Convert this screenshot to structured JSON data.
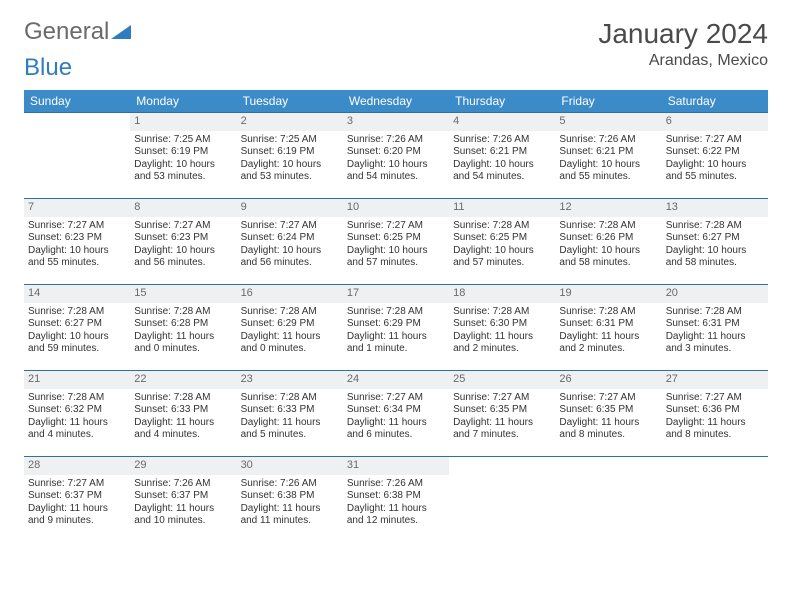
{
  "brand": {
    "general": "General",
    "blue": "Blue"
  },
  "title": "January 2024",
  "location": "Arandas, Mexico",
  "colors": {
    "header_bg": "#3b8bc9",
    "header_text": "#ffffff",
    "week_border": "#2f6fa8",
    "daynum_bg": "#eef0f2",
    "daynum_text": "#6a6a6a",
    "body_text": "#333333",
    "logo_gray": "#6a6a6a",
    "logo_blue": "#2f7dc0"
  },
  "day_headers": [
    "Sunday",
    "Monday",
    "Tuesday",
    "Wednesday",
    "Thursday",
    "Friday",
    "Saturday"
  ],
  "weeks": [
    [
      {
        "n": "",
        "l1": "",
        "l2": "",
        "l3": "",
        "l4": ""
      },
      {
        "n": "1",
        "l1": "Sunrise: 7:25 AM",
        "l2": "Sunset: 6:19 PM",
        "l3": "Daylight: 10 hours",
        "l4": "and 53 minutes."
      },
      {
        "n": "2",
        "l1": "Sunrise: 7:25 AM",
        "l2": "Sunset: 6:19 PM",
        "l3": "Daylight: 10 hours",
        "l4": "and 53 minutes."
      },
      {
        "n": "3",
        "l1": "Sunrise: 7:26 AM",
        "l2": "Sunset: 6:20 PM",
        "l3": "Daylight: 10 hours",
        "l4": "and 54 minutes."
      },
      {
        "n": "4",
        "l1": "Sunrise: 7:26 AM",
        "l2": "Sunset: 6:21 PM",
        "l3": "Daylight: 10 hours",
        "l4": "and 54 minutes."
      },
      {
        "n": "5",
        "l1": "Sunrise: 7:26 AM",
        "l2": "Sunset: 6:21 PM",
        "l3": "Daylight: 10 hours",
        "l4": "and 55 minutes."
      },
      {
        "n": "6",
        "l1": "Sunrise: 7:27 AM",
        "l2": "Sunset: 6:22 PM",
        "l3": "Daylight: 10 hours",
        "l4": "and 55 minutes."
      }
    ],
    [
      {
        "n": "7",
        "l1": "Sunrise: 7:27 AM",
        "l2": "Sunset: 6:23 PM",
        "l3": "Daylight: 10 hours",
        "l4": "and 55 minutes."
      },
      {
        "n": "8",
        "l1": "Sunrise: 7:27 AM",
        "l2": "Sunset: 6:23 PM",
        "l3": "Daylight: 10 hours",
        "l4": "and 56 minutes."
      },
      {
        "n": "9",
        "l1": "Sunrise: 7:27 AM",
        "l2": "Sunset: 6:24 PM",
        "l3": "Daylight: 10 hours",
        "l4": "and 56 minutes."
      },
      {
        "n": "10",
        "l1": "Sunrise: 7:27 AM",
        "l2": "Sunset: 6:25 PM",
        "l3": "Daylight: 10 hours",
        "l4": "and 57 minutes."
      },
      {
        "n": "11",
        "l1": "Sunrise: 7:28 AM",
        "l2": "Sunset: 6:25 PM",
        "l3": "Daylight: 10 hours",
        "l4": "and 57 minutes."
      },
      {
        "n": "12",
        "l1": "Sunrise: 7:28 AM",
        "l2": "Sunset: 6:26 PM",
        "l3": "Daylight: 10 hours",
        "l4": "and 58 minutes."
      },
      {
        "n": "13",
        "l1": "Sunrise: 7:28 AM",
        "l2": "Sunset: 6:27 PM",
        "l3": "Daylight: 10 hours",
        "l4": "and 58 minutes."
      }
    ],
    [
      {
        "n": "14",
        "l1": "Sunrise: 7:28 AM",
        "l2": "Sunset: 6:27 PM",
        "l3": "Daylight: 10 hours",
        "l4": "and 59 minutes."
      },
      {
        "n": "15",
        "l1": "Sunrise: 7:28 AM",
        "l2": "Sunset: 6:28 PM",
        "l3": "Daylight: 11 hours",
        "l4": "and 0 minutes."
      },
      {
        "n": "16",
        "l1": "Sunrise: 7:28 AM",
        "l2": "Sunset: 6:29 PM",
        "l3": "Daylight: 11 hours",
        "l4": "and 0 minutes."
      },
      {
        "n": "17",
        "l1": "Sunrise: 7:28 AM",
        "l2": "Sunset: 6:29 PM",
        "l3": "Daylight: 11 hours",
        "l4": "and 1 minute."
      },
      {
        "n": "18",
        "l1": "Sunrise: 7:28 AM",
        "l2": "Sunset: 6:30 PM",
        "l3": "Daylight: 11 hours",
        "l4": "and 2 minutes."
      },
      {
        "n": "19",
        "l1": "Sunrise: 7:28 AM",
        "l2": "Sunset: 6:31 PM",
        "l3": "Daylight: 11 hours",
        "l4": "and 2 minutes."
      },
      {
        "n": "20",
        "l1": "Sunrise: 7:28 AM",
        "l2": "Sunset: 6:31 PM",
        "l3": "Daylight: 11 hours",
        "l4": "and 3 minutes."
      }
    ],
    [
      {
        "n": "21",
        "l1": "Sunrise: 7:28 AM",
        "l2": "Sunset: 6:32 PM",
        "l3": "Daylight: 11 hours",
        "l4": "and 4 minutes."
      },
      {
        "n": "22",
        "l1": "Sunrise: 7:28 AM",
        "l2": "Sunset: 6:33 PM",
        "l3": "Daylight: 11 hours",
        "l4": "and 4 minutes."
      },
      {
        "n": "23",
        "l1": "Sunrise: 7:28 AM",
        "l2": "Sunset: 6:33 PM",
        "l3": "Daylight: 11 hours",
        "l4": "and 5 minutes."
      },
      {
        "n": "24",
        "l1": "Sunrise: 7:27 AM",
        "l2": "Sunset: 6:34 PM",
        "l3": "Daylight: 11 hours",
        "l4": "and 6 minutes."
      },
      {
        "n": "25",
        "l1": "Sunrise: 7:27 AM",
        "l2": "Sunset: 6:35 PM",
        "l3": "Daylight: 11 hours",
        "l4": "and 7 minutes."
      },
      {
        "n": "26",
        "l1": "Sunrise: 7:27 AM",
        "l2": "Sunset: 6:35 PM",
        "l3": "Daylight: 11 hours",
        "l4": "and 8 minutes."
      },
      {
        "n": "27",
        "l1": "Sunrise: 7:27 AM",
        "l2": "Sunset: 6:36 PM",
        "l3": "Daylight: 11 hours",
        "l4": "and 8 minutes."
      }
    ],
    [
      {
        "n": "28",
        "l1": "Sunrise: 7:27 AM",
        "l2": "Sunset: 6:37 PM",
        "l3": "Daylight: 11 hours",
        "l4": "and 9 minutes."
      },
      {
        "n": "29",
        "l1": "Sunrise: 7:26 AM",
        "l2": "Sunset: 6:37 PM",
        "l3": "Daylight: 11 hours",
        "l4": "and 10 minutes."
      },
      {
        "n": "30",
        "l1": "Sunrise: 7:26 AM",
        "l2": "Sunset: 6:38 PM",
        "l3": "Daylight: 11 hours",
        "l4": "and 11 minutes."
      },
      {
        "n": "31",
        "l1": "Sunrise: 7:26 AM",
        "l2": "Sunset: 6:38 PM",
        "l3": "Daylight: 11 hours",
        "l4": "and 12 minutes."
      },
      {
        "n": "",
        "l1": "",
        "l2": "",
        "l3": "",
        "l4": ""
      },
      {
        "n": "",
        "l1": "",
        "l2": "",
        "l3": "",
        "l4": ""
      },
      {
        "n": "",
        "l1": "",
        "l2": "",
        "l3": "",
        "l4": ""
      }
    ]
  ]
}
